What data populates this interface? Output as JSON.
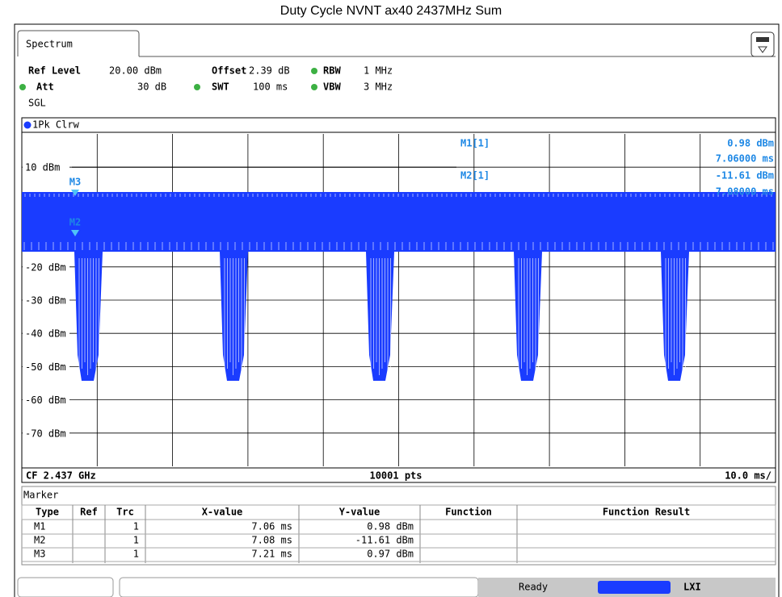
{
  "title": "Duty Cycle NVNT ax40 2437MHz Sum",
  "tab": "Spectrum",
  "settings": {
    "ref_level_label": "Ref Level",
    "ref_level": "20.00 dBm",
    "offset_label": "Offset",
    "offset": "2.39 dB",
    "rbw_label": "RBW",
    "rbw": "1 MHz",
    "att_label": "Att",
    "att": "30 dB",
    "swt_label": "SWT",
    "swt": "100 ms",
    "vbw_label": "VBW",
    "vbw": "3 MHz",
    "mode": "SGL"
  },
  "trace_label": "1Pk Clrw",
  "y_axis_labels": [
    "10 dBm",
    "-20 dBm",
    "-30 dBm",
    "-40 dBm",
    "-50 dBm",
    "-60 dBm",
    "-70 dBm"
  ],
  "marker_readout": {
    "m1_name": "M1[1]",
    "m1_level": "0.98 dBm",
    "m1_time": "7.06000 ms",
    "m2_name": "M2[1]",
    "m2_level": "-11.61 dBm",
    "m2_time": "7.08000 ms"
  },
  "plot_markers": [
    "M3",
    "M2"
  ],
  "footer": {
    "center_freq": "CF 2.437 GHz",
    "points": "10001 pts",
    "time_div": "10.0 ms/"
  },
  "table": {
    "title": "Marker",
    "headers": [
      "Type",
      "Ref",
      "Trc",
      "X-value",
      "Y-value",
      "Function",
      "Function Result"
    ],
    "rows": [
      [
        "M1",
        "",
        "1",
        "7.06 ms",
        "0.98 dBm",
        "",
        ""
      ],
      [
        "M2",
        "",
        "1",
        "7.08 ms",
        "-11.61 dBm",
        "",
        ""
      ],
      [
        "M3",
        "",
        "1",
        "7.21 ms",
        "0.97 dBm",
        "",
        ""
      ]
    ]
  },
  "status": {
    "state": "Ready",
    "lxi": "LXI"
  }
}
